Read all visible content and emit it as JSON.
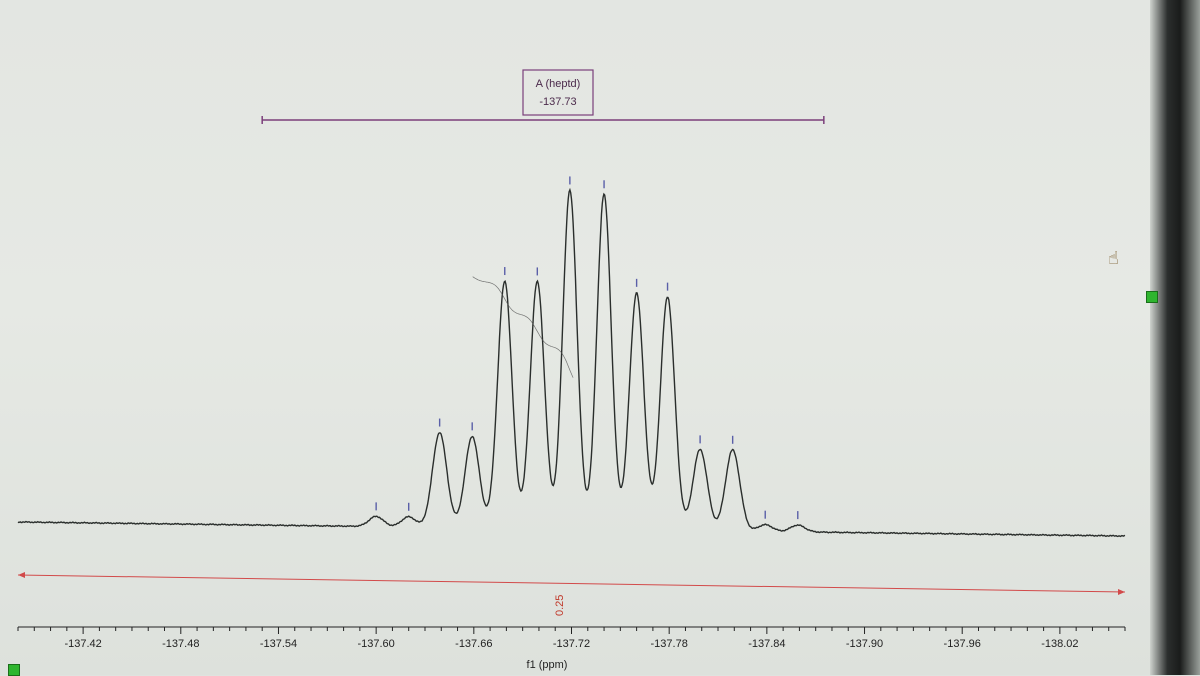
{
  "chart_data": {
    "type": "line",
    "xlabel": "f1 (ppm)",
    "x_reversed": true,
    "xlim": [
      -137.38,
      -138.06
    ],
    "ylim": [
      0,
      1.0
    ],
    "x_ticks": [
      "-137.42",
      "-137.48",
      "-137.54",
      "-137.60",
      "-137.66",
      "-137.72",
      "-137.78",
      "-137.84",
      "-137.90",
      "-137.96",
      "-138.02"
    ],
    "multiplet": {
      "label": "A (heptd)",
      "shift": "-137.73",
      "range_ppm": [
        -137.53,
        -137.875
      ]
    },
    "integral": {
      "value": "0.25",
      "range_ppm": [
        -137.38,
        -138.06
      ]
    },
    "peaks": [
      {
        "ppm": -137.6,
        "height": 0.03
      },
      {
        "ppm": -137.62,
        "height": 0.03
      },
      {
        "ppm": -137.639,
        "height": 0.28
      },
      {
        "ppm": -137.659,
        "height": 0.27
      },
      {
        "ppm": -137.679,
        "height": 0.73
      },
      {
        "ppm": -137.699,
        "height": 0.73
      },
      {
        "ppm": -137.719,
        "height": 1.0
      },
      {
        "ppm": -137.74,
        "height": 0.99
      },
      {
        "ppm": -137.76,
        "height": 0.7
      },
      {
        "ppm": -137.779,
        "height": 0.69
      },
      {
        "ppm": -137.799,
        "height": 0.24
      },
      {
        "ppm": -137.819,
        "height": 0.24
      },
      {
        "ppm": -137.839,
        "height": 0.02
      },
      {
        "ppm": -137.859,
        "height": 0.02
      }
    ],
    "grid": false
  },
  "colors": {
    "spectrum": "#2a2e2c",
    "multiplet": "#7b3f7b",
    "integral": "#d24a4a",
    "peak_marker": "#5a5fa8",
    "cursor_handle": "#2fb52f"
  },
  "icons": {
    "cursor": "hand-pointer-icon",
    "handle": "green-square-handle"
  }
}
